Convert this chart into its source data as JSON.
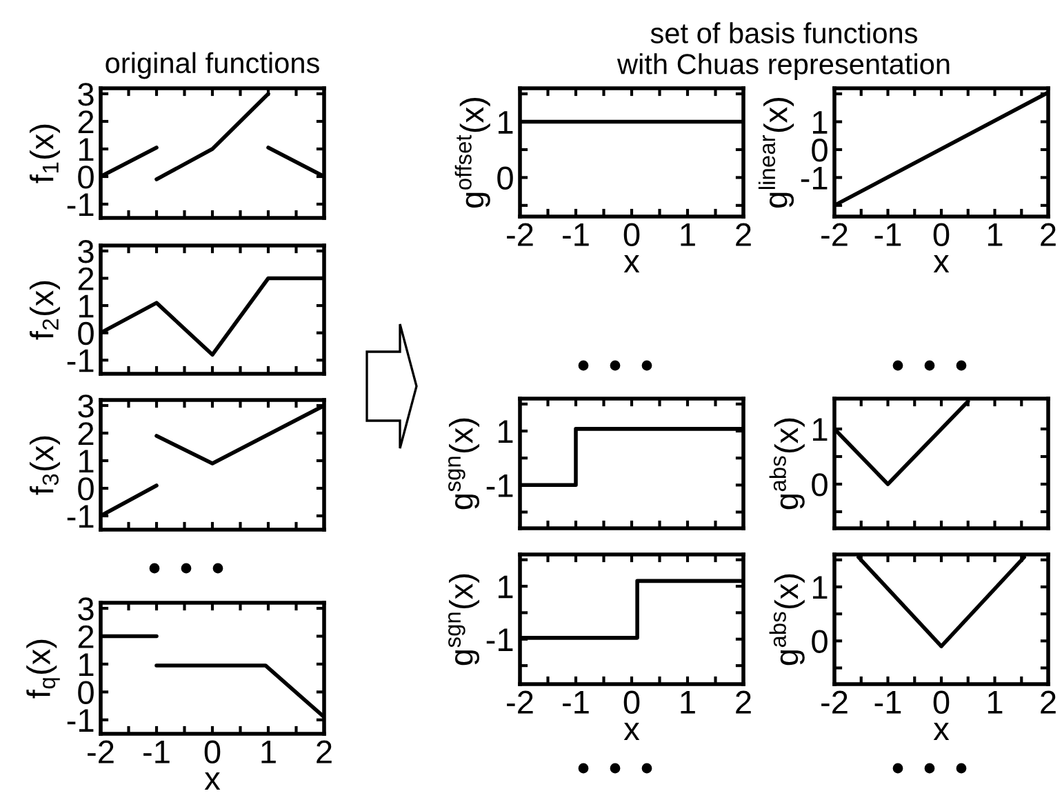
{
  "chart_data": [
    {
      "type": "line",
      "title": "original functions",
      "ylabel": "f$_{1}$(x)",
      "series": [
        {
          "x": [
            -2,
            -1
          ],
          "values": [
            0,
            1.05
          ],
          "color": "#000000"
        },
        {
          "x": [
            -1,
            0,
            1
          ],
          "values": [
            -0.1,
            1,
            3
          ],
          "color": "#000000"
        },
        {
          "x": [
            1,
            2
          ],
          "values": [
            1.05,
            0
          ],
          "color": "#000000"
        }
      ],
      "xlim": [
        -2,
        2
      ],
      "ylim": [
        -1.5,
        3.2
      ],
      "xticks": [
        -2,
        {
          "value": -1.5,
          "label": null
        },
        -1,
        {
          "value": -0.5,
          "label": null
        },
        0,
        {
          "value": 0.5,
          "label": null
        },
        1,
        {
          "value": 1.5,
          "label": null
        },
        2
      ],
      "yticks": [
        -1,
        0,
        1,
        2,
        3
      ],
      "tick_labels": "y",
      "grid": false
    },
    {
      "type": "line",
      "ylabel": "f$_{2}$(x)",
      "x": [
        -2,
        -1,
        0,
        1,
        2
      ],
      "values": [
        0,
        1.1,
        -0.8,
        2,
        2
      ],
      "color": "#000000",
      "xlim": [
        -2,
        2
      ],
      "ylim": [
        -1.5,
        3.2
      ],
      "xticks": [
        -2,
        {
          "value": -1.5,
          "label": null
        },
        -1,
        {
          "value": -0.5,
          "label": null
        },
        0,
        {
          "value": 0.5,
          "label": null
        },
        1,
        {
          "value": 1.5,
          "label": null
        },
        2
      ],
      "yticks": [
        -1,
        0,
        1,
        2,
        3
      ],
      "tick_labels": "y",
      "grid": false
    },
    {
      "type": "line",
      "ylabel": "f$_{3}$(x)",
      "series": [
        {
          "x": [
            -2,
            -1
          ],
          "values": [
            -1,
            0.1
          ],
          "color": "#000000"
        },
        {
          "x": [
            -1,
            0,
            2
          ],
          "values": [
            1.9,
            0.9,
            3
          ],
          "color": "#000000"
        }
      ],
      "xlim": [
        -2,
        2
      ],
      "ylim": [
        -1.5,
        3.2
      ],
      "xticks": [
        -2,
        {
          "value": -1.5,
          "label": null
        },
        -1,
        {
          "value": -0.5,
          "label": null
        },
        0,
        {
          "value": 0.5,
          "label": null
        },
        1,
        {
          "value": 1.5,
          "label": null
        },
        2
      ],
      "yticks": [
        -1,
        0,
        1,
        2,
        3
      ],
      "tick_labels": "y",
      "grid": false
    },
    {
      "type": "line",
      "xlabel": "x",
      "ylabel": "f$_{q}$(x)",
      "series": [
        {
          "x": [
            -2,
            -1
          ],
          "values": [
            2,
            2
          ],
          "color": "#000000"
        },
        {
          "x": [
            -1,
            0.95,
            2
          ],
          "values": [
            0.95,
            0.95,
            -0.9
          ],
          "color": "#000000"
        }
      ],
      "xlim": [
        -2,
        2
      ],
      "ylim": [
        -1.5,
        3.2
      ],
      "xticks": [
        -2,
        {
          "value": -1.5,
          "label": null
        },
        -1,
        {
          "value": -0.5,
          "label": null
        },
        0,
        {
          "value": 0.5,
          "label": null
        },
        1,
        {
          "value": 1.5,
          "label": null
        },
        2
      ],
      "yticks": [
        -1,
        0,
        1,
        2,
        3
      ],
      "grid": false
    },
    {
      "type": "line",
      "title": "set of basis functions\nwith Chuas representation",
      "xlabel": "x",
      "ylabel": "g$^{offset}$(x)",
      "x": [
        -2,
        2
      ],
      "values": [
        1,
        1
      ],
      "color": "#000000",
      "xlim": [
        -2,
        2
      ],
      "ylim": [
        -0.7,
        1.6
      ],
      "xticks": [
        -2,
        {
          "value": -1.5,
          "label": null
        },
        -1,
        {
          "value": -0.5,
          "label": null
        },
        0,
        {
          "value": 0.5,
          "label": null
        },
        1,
        {
          "value": 1.5,
          "label": null
        },
        2
      ],
      "yticks": [
        {
          "value": -0.5,
          "label": null
        },
        0,
        {
          "value": 0.5,
          "label": null
        },
        1,
        {
          "value": 1.5,
          "label": null
        }
      ],
      "grid": false
    },
    {
      "type": "line",
      "xlabel": "x",
      "ylabel": "g$^{linear}$(x)",
      "x": [
        -2,
        2
      ],
      "values": [
        -2,
        2.05
      ],
      "color": "#000000",
      "xlim": [
        -2,
        2
      ],
      "ylim": [
        -2.4,
        2.2
      ],
      "xticks": [
        -2,
        {
          "value": -1.5,
          "label": null
        },
        -1,
        {
          "value": -0.5,
          "label": null
        },
        0,
        {
          "value": 0.5,
          "label": null
        },
        1,
        {
          "value": 1.5,
          "label": null
        },
        2
      ],
      "yticks": [
        {
          "value": -2,
          "label": null
        },
        -1,
        0,
        1,
        {
          "value": 2,
          "label": null
        }
      ],
      "grid": false
    },
    {
      "type": "line",
      "ylabel": "g$^{sgn}$(x)",
      "x": [
        -2,
        -1,
        -1,
        2
      ],
      "values": [
        -1,
        -1,
        1.08,
        1.08
      ],
      "color": "#000000",
      "xlim": [
        -2,
        2
      ],
      "ylim": [
        -2.6,
        2.2
      ],
      "xticks": [
        -2,
        {
          "value": -1.5,
          "label": null
        },
        -1,
        {
          "value": -0.5,
          "label": null
        },
        0,
        {
          "value": 0.5,
          "label": null
        },
        1,
        {
          "value": 1.5,
          "label": null
        },
        2
      ],
      "yticks": [
        {
          "value": -2,
          "label": null
        },
        -1,
        {
          "value": 0,
          "label": null
        },
        1,
        {
          "value": 2,
          "label": null
        }
      ],
      "tick_labels": "y",
      "grid": false
    },
    {
      "type": "line",
      "ylabel": "g$^{abs}$(x)",
      "x": [
        -2,
        -1,
        0.5
      ],
      "values": [
        1,
        0,
        1.5
      ],
      "color": "#000000",
      "xlim": [
        -2,
        2
      ],
      "ylim": [
        -0.8,
        1.55
      ],
      "xticks": [
        -2,
        {
          "value": -1.5,
          "label": null
        },
        -1,
        {
          "value": -0.5,
          "label": null
        },
        0,
        {
          "value": 0.5,
          "label": null
        },
        1,
        {
          "value": 1.5,
          "label": null
        },
        2
      ],
      "yticks": [
        {
          "value": -0.5,
          "label": null
        },
        0,
        {
          "value": 0.5,
          "label": null
        },
        1
      ],
      "tick_labels": "y",
      "grid": false
    },
    {
      "type": "line",
      "xlabel": "x",
      "ylabel": "g$^{sgn}$(x)",
      "x": [
        -2,
        0.1,
        0.1,
        2
      ],
      "values": [
        -0.95,
        -0.95,
        1.2,
        1.2
      ],
      "color": "#000000",
      "xlim": [
        -2,
        2
      ],
      "ylim": [
        -2.7,
        2.2
      ],
      "xticks": [
        -2,
        {
          "value": -1.5,
          "label": null
        },
        -1,
        {
          "value": -0.5,
          "label": null
        },
        0,
        {
          "value": 0.5,
          "label": null
        },
        1,
        {
          "value": 1.5,
          "label": null
        },
        2
      ],
      "yticks": [
        {
          "value": -2,
          "label": null
        },
        -1,
        {
          "value": 0,
          "label": null
        },
        1,
        {
          "value": 2,
          "label": null
        }
      ],
      "grid": false
    },
    {
      "type": "line",
      "xlabel": "x",
      "ylabel": "g$^{abs}$(x)",
      "x": [
        -1.55,
        0,
        1.55
      ],
      "values": [
        1.55,
        -0.1,
        1.55
      ],
      "color": "#000000",
      "xlim": [
        -2,
        2
      ],
      "ylim": [
        -0.8,
        1.6
      ],
      "xticks": [
        -2,
        {
          "value": -1.5,
          "label": null
        },
        -1,
        {
          "value": -0.5,
          "label": null
        },
        0,
        {
          "value": 0.5,
          "label": null
        },
        1,
        {
          "value": 1.5,
          "label": null
        },
        2
      ],
      "yticks": [
        {
          "value": -0.5,
          "label": null
        },
        0,
        {
          "value": 0.5,
          "label": null
        },
        1,
        {
          "value": 1.5,
          "label": null
        }
      ],
      "grid": false
    }
  ]
}
